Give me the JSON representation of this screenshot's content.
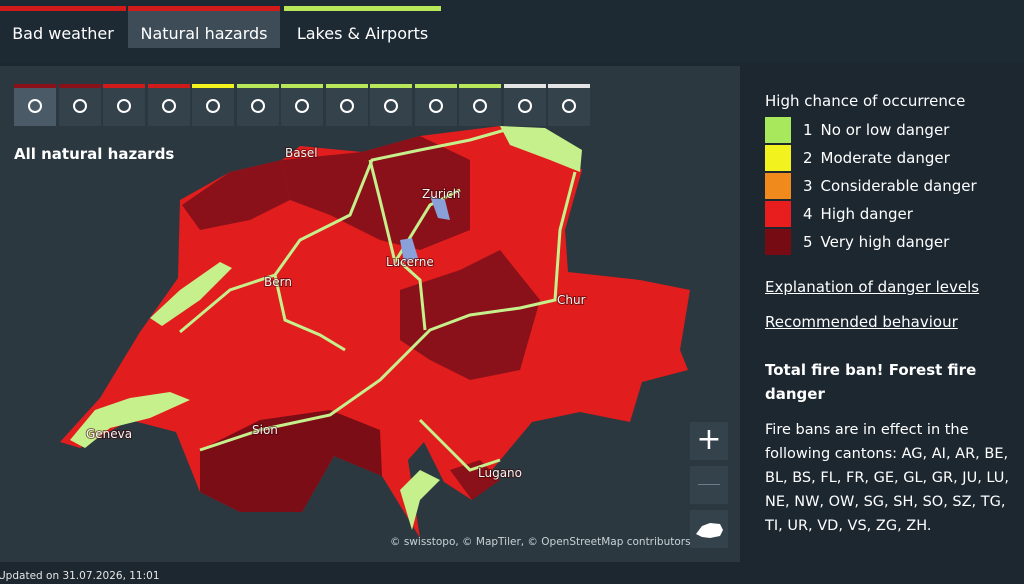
{
  "tabs": [
    "Bad weather",
    "Natural hazards",
    "Lakes & Airports"
  ],
  "hazard_title": "All natural hazards",
  "cities": [
    "Basel",
    "Zurich",
    "Lucerne",
    "Bern",
    "Chur",
    "Geneva",
    "Sion",
    "Lugano"
  ],
  "legend": {
    "title": "High chance of occurrence",
    "items": [
      {
        "number": 1,
        "label": "No or low danger",
        "color": "#a8e85c"
      },
      {
        "number": 2,
        "label": "Moderate danger",
        "color": "#f2f21e"
      },
      {
        "number": 3,
        "label": "Considerable danger",
        "color": "#f08a1c"
      },
      {
        "number": 4,
        "label": "High danger",
        "color": "#e81e1e"
      },
      {
        "number": 5,
        "label": "Very high danger",
        "color": "#760b14"
      }
    ]
  },
  "links": [
    "Explanation of danger levels",
    "Recommended behaviour"
  ],
  "fire_ban": {
    "title": "Total fire ban! Forest fire danger",
    "text": "Fire bans are in effect in the following cantons: AG, AI, AR, BE, BL, BS, FL, FR, GE, GL, GR, JU, LU, NE, NW, OW, SG, SH, SO, SZ, TG, TI, UR, VD, VS, ZG, ZH."
  },
  "attribution": "© swisstopo, © MapTiler, © OpenStreetMap contributors",
  "updated": "Updated on 31.07.2026, 11:01"
}
